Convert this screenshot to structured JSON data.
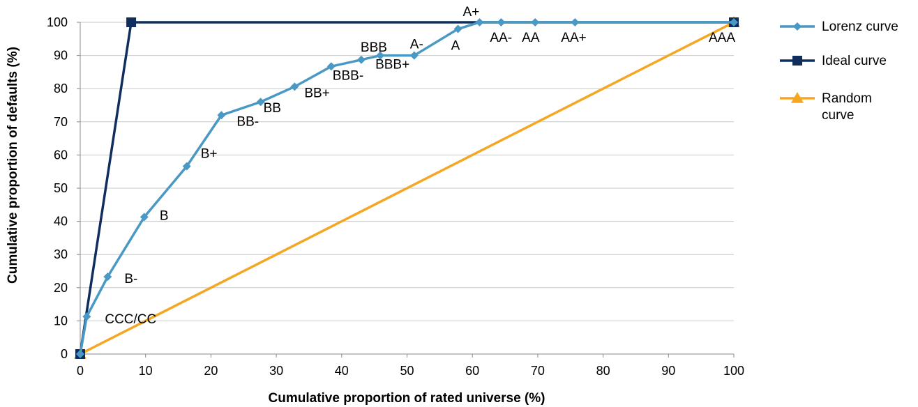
{
  "chart_data": {
    "type": "line",
    "xlabel": "Cumulative proportion of rated universe (%)",
    "ylabel": "Cumulative proportion of defaults (%)",
    "xlim": [
      0,
      100
    ],
    "ylim": [
      0,
      100
    ],
    "x_ticks": [
      "0",
      "10",
      "20",
      "30",
      "40",
      "50",
      "60",
      "70",
      "80",
      "90",
      "100"
    ],
    "y_ticks": [
      "0",
      "10",
      "20",
      "30",
      "40",
      "50",
      "60",
      "70",
      "80",
      "90",
      "100"
    ],
    "grid": "horizontal",
    "legend_position": "right",
    "series": [
      {
        "name": "Lorenz curve",
        "color": "#4a98c4",
        "marker": "diamond",
        "points": [
          {
            "x": 0,
            "y": 0,
            "label": ""
          },
          {
            "x": 1,
            "y": 11.3,
            "label": "CCC/CC"
          },
          {
            "x": 4.2,
            "y": 23.3,
            "label": "B-"
          },
          {
            "x": 9.8,
            "y": 41.3,
            "label": "B"
          },
          {
            "x": 16.3,
            "y": 56.6,
            "label": "B+"
          },
          {
            "x": 21.6,
            "y": 72,
            "label": "BB-"
          },
          {
            "x": 27.6,
            "y": 76,
            "label": "BB"
          },
          {
            "x": 32.8,
            "y": 80.6,
            "label": "BB+"
          },
          {
            "x": 38.4,
            "y": 86.7,
            "label": "BBB-"
          },
          {
            "x": 43,
            "y": 88.7,
            "label": "BBB"
          },
          {
            "x": 45.9,
            "y": 90,
            "label": "BBB+"
          },
          {
            "x": 51.1,
            "y": 90,
            "label": "A-"
          },
          {
            "x": 57.8,
            "y": 98,
            "label": "A"
          },
          {
            "x": 61.1,
            "y": 100,
            "label": "A+"
          },
          {
            "x": 64.4,
            "y": 100,
            "label": "AA-"
          },
          {
            "x": 69.6,
            "y": 100,
            "label": "AA"
          },
          {
            "x": 75.7,
            "y": 100,
            "label": "AA+"
          },
          {
            "x": 100,
            "y": 100,
            "label": "AAA"
          }
        ]
      },
      {
        "name": "Ideal curve",
        "color": "#0f2e5e",
        "marker": "square",
        "points": [
          {
            "x": 0,
            "y": 0
          },
          {
            "x": 7.8,
            "y": 100
          },
          {
            "x": 100,
            "y": 100
          }
        ]
      },
      {
        "name": "Random curve",
        "legend_lines": [
          "Random",
          "curve"
        ],
        "color": "#f5a623",
        "marker": "triangle",
        "points": [
          {
            "x": 0,
            "y": 0
          },
          {
            "x": 100,
            "y": 100
          }
        ]
      }
    ]
  }
}
